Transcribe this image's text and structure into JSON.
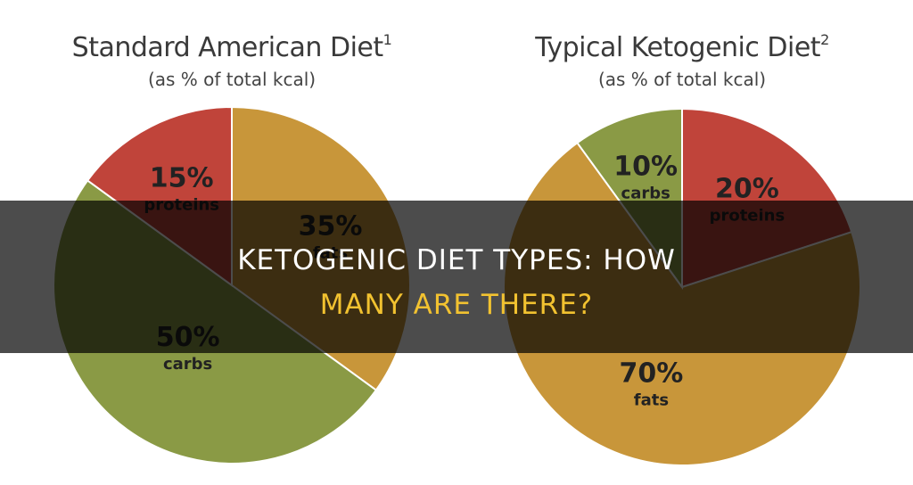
{
  "chart_data": [
    {
      "type": "pie",
      "title": "Standard American Diet",
      "title_sup": "1",
      "subtitle": "(as % of total kcal)",
      "slices": [
        {
          "value": 35,
          "label": "35%",
          "name": "fats",
          "color": "#c8963a"
        },
        {
          "value": 50,
          "label": "50%",
          "name": "carbs",
          "color": "#8a9a45"
        },
        {
          "value": 15,
          "label": "15%",
          "name": "proteins",
          "color": "#c0443a"
        }
      ]
    },
    {
      "type": "pie",
      "title": "Typical Ketogenic Diet",
      "title_sup": "2",
      "subtitle": "(as % of total kcal)",
      "slices": [
        {
          "value": 20,
          "label": "20%",
          "name": "proteins",
          "color": "#c0443a"
        },
        {
          "value": 70,
          "label": "70%",
          "name": "fats",
          "color": "#c8963a"
        },
        {
          "value": 10,
          "label": "10%",
          "name": "carbs",
          "color": "#8a9a45"
        }
      ]
    }
  ],
  "overlay": {
    "line1": "KETOGENIC DIET TYPES: HOW",
    "line2": "MANY ARE THERE?"
  },
  "colors": {
    "fats": "#c8963a",
    "carbs": "#8a9a45",
    "proteins": "#c0443a",
    "overlay_line1": "#ffffff",
    "overlay_line2": "#f2c230"
  }
}
